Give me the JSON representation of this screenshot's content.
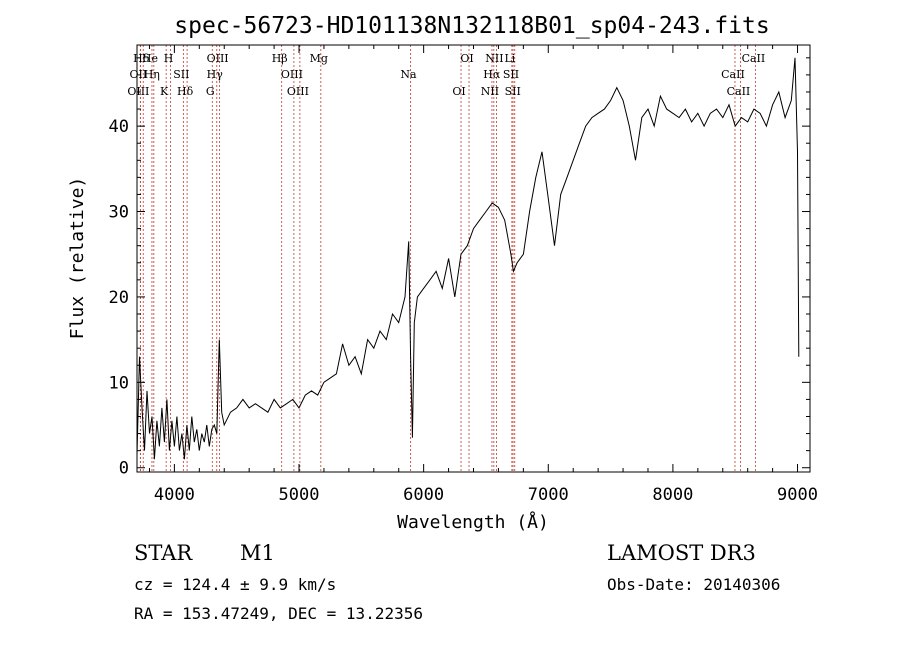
{
  "chart_data": {
    "type": "line",
    "title": "spec-56723-HD101138N132118B01_sp04-243.fits",
    "xlabel": "Wavelength (Å)",
    "ylabel": "Flux (relative)",
    "xlim": [
      3700,
      9100
    ],
    "ylim": [
      -0.5,
      49.5
    ],
    "xticks": [
      4000,
      5000,
      6000,
      7000,
      8000,
      9000
    ],
    "yticks": [
      0,
      10,
      20,
      30,
      40
    ],
    "grid": false,
    "spectrum": {
      "wavelength": [
        3700,
        3720,
        3740,
        3760,
        3780,
        3800,
        3820,
        3840,
        3860,
        3880,
        3900,
        3920,
        3940,
        3960,
        3980,
        4000,
        4020,
        4040,
        4060,
        4080,
        4100,
        4120,
        4140,
        4160,
        4180,
        4200,
        4220,
        4240,
        4260,
        4280,
        4300,
        4320,
        4340,
        4360,
        4380,
        4400,
        4450,
        4500,
        4550,
        4600,
        4650,
        4700,
        4750,
        4800,
        4850,
        4900,
        4950,
        5000,
        5050,
        5100,
        5150,
        5200,
        5250,
        5300,
        5350,
        5400,
        5450,
        5500,
        5550,
        5600,
        5650,
        5700,
        5750,
        5800,
        5850,
        5880,
        5895,
        5910,
        5925,
        5950,
        6000,
        6050,
        6100,
        6150,
        6200,
        6250,
        6300,
        6350,
        6400,
        6450,
        6500,
        6550,
        6600,
        6650,
        6700,
        6720,
        6750,
        6800,
        6850,
        6900,
        6950,
        7000,
        7050,
        7100,
        7150,
        7200,
        7250,
        7300,
        7350,
        7400,
        7450,
        7500,
        7550,
        7600,
        7650,
        7700,
        7750,
        7800,
        7850,
        7900,
        7950,
        8000,
        8050,
        8100,
        8150,
        8200,
        8250,
        8300,
        8350,
        8400,
        8450,
        8500,
        8550,
        8600,
        8650,
        8700,
        8750,
        8800,
        8850,
        8900,
        8950,
        8980,
        9000,
        9010
      ],
      "flux": [
        1.5,
        13.0,
        7.0,
        2.0,
        9.0,
        4.0,
        6.0,
        1.0,
        5.5,
        2.5,
        7.0,
        3.0,
        8.0,
        2.0,
        5.5,
        2.5,
        6.0,
        2.0,
        4.0,
        1.0,
        5.0,
        2.0,
        6.0,
        3.0,
        4.5,
        2.0,
        4.0,
        3.0,
        5.0,
        2.5,
        4.5,
        5.0,
        4.0,
        15.0,
        6.5,
        5.0,
        6.5,
        7.0,
        8.0,
        7.0,
        7.5,
        7.0,
        6.5,
        8.0,
        7.0,
        7.5,
        8.0,
        7.0,
        8.5,
        9.0,
        8.5,
        10.0,
        10.5,
        11.0,
        14.5,
        12.0,
        13.0,
        11.0,
        15.0,
        14.0,
        16.0,
        15.0,
        18.0,
        17.0,
        20.0,
        26.5,
        13.0,
        3.5,
        17.0,
        20.0,
        21.0,
        22.0,
        23.0,
        21.0,
        24.5,
        20.0,
        25.0,
        26.0,
        28.0,
        29.0,
        30.0,
        31.0,
        30.5,
        29.0,
        25.0,
        23.0,
        24.0,
        25.0,
        30.0,
        34.0,
        37.0,
        31.5,
        26.0,
        32.0,
        34.0,
        36.0,
        38.0,
        40.0,
        41.0,
        41.5,
        42.0,
        43.0,
        44.5,
        43.0,
        40.0,
        36.0,
        41.0,
        42.0,
        40.0,
        43.5,
        42.0,
        41.5,
        41.0,
        42.0,
        40.5,
        41.5,
        40.0,
        41.5,
        42.0,
        41.0,
        42.5,
        40.0,
        41.0,
        40.5,
        42.0,
        41.5,
        40.0,
        42.5,
        44.0,
        41.0,
        43.0,
        48.0,
        37.0,
        13.0
      ]
    },
    "line_markers": [
      {
        "label": "Hδ",
        "wavelength": 3750
      },
      {
        "label": "OII",
        "wavelength": 3727
      },
      {
        "label": "OIII",
        "wavelength": 3727
      },
      {
        "label": "He",
        "wavelength": 3820
      },
      {
        "label": "Hη",
        "wavelength": 3835
      },
      {
        "label": "K",
        "wavelength": 3934
      },
      {
        "label": "H",
        "wavelength": 3969
      },
      {
        "label": "SII",
        "wavelength": 4072
      },
      {
        "label": "Hδ",
        "wavelength": 4102
      },
      {
        "label": "OIII",
        "wavelength": 4363
      },
      {
        "label": "Hγ",
        "wavelength": 4340
      },
      {
        "label": "G",
        "wavelength": 4304
      },
      {
        "label": "Hβ",
        "wavelength": 4861
      },
      {
        "label": "OIII",
        "wavelength": 4959
      },
      {
        "label": "OIII",
        "wavelength": 5007
      },
      {
        "label": "Mg",
        "wavelength": 5175
      },
      {
        "label": "Na",
        "wavelength": 5894
      },
      {
        "label": "OI",
        "wavelength": 6300
      },
      {
        "label": "OI",
        "wavelength": 6364
      },
      {
        "label": "Hα",
        "wavelength": 6563
      },
      {
        "label": "NII",
        "wavelength": 6548
      },
      {
        "label": "NII",
        "wavelength": 6584
      },
      {
        "label": "SII",
        "wavelength": 6717
      },
      {
        "label": "SII",
        "wavelength": 6731
      },
      {
        "label": "Li",
        "wavelength": 6708
      },
      {
        "label": "CaII",
        "wavelength": 8498
      },
      {
        "label": "CaII",
        "wavelength": 8542
      },
      {
        "label": "CaII",
        "wavelength": 8662
      }
    ]
  },
  "info": {
    "object_class": "STAR",
    "subclass": "M1",
    "survey": "LAMOST DR3",
    "cz": "cz = 124.4 ± 9.9 km/s",
    "obs_date": "Obs-Date: 20140306",
    "coords": "RA = 153.47249, DEC =  13.22356"
  }
}
